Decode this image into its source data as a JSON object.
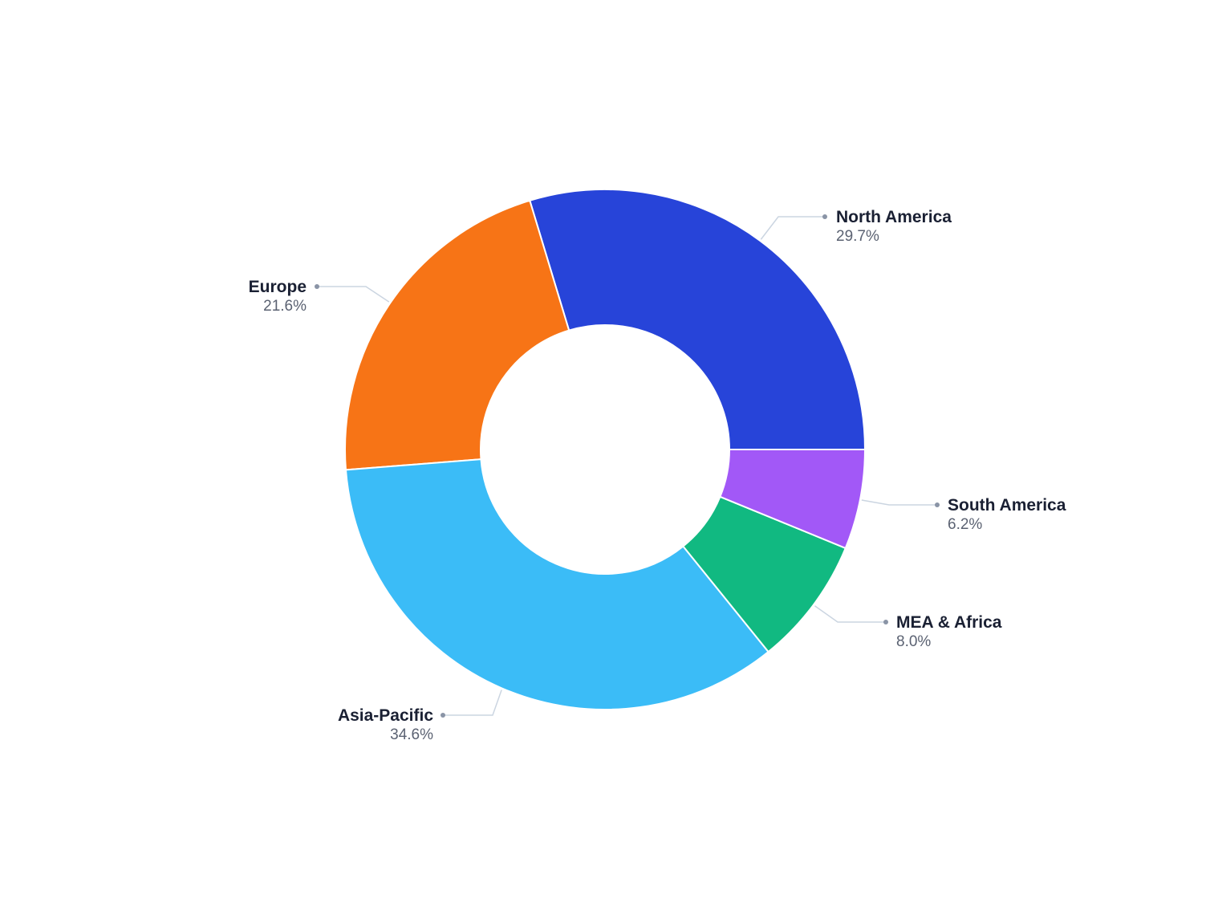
{
  "chart_data": {
    "type": "pie",
    "variant": "donut",
    "title": "",
    "start_direction": "clockwise from 3 o'clock (counter-clockwise rendering order starting at east)",
    "slices": [
      {
        "label": "North America",
        "value": 29.7,
        "display": "29.7%",
        "color": "#2744d9"
      },
      {
        "label": "Europe",
        "value": 21.6,
        "display": "21.6%",
        "color": "#f77416"
      },
      {
        "label": "Asia-Pacific",
        "value": 34.6,
        "display": "34.6%",
        "color": "#3bbcf7"
      },
      {
        "label": "MEA & Africa",
        "value": 8.0,
        "display": "8.0%",
        "color": "#11b981"
      },
      {
        "label": "South America",
        "value": 6.2,
        "display": "6.2%",
        "color": "#a258f7"
      }
    ],
    "legend": "none (direct labels with leader lines)"
  }
}
